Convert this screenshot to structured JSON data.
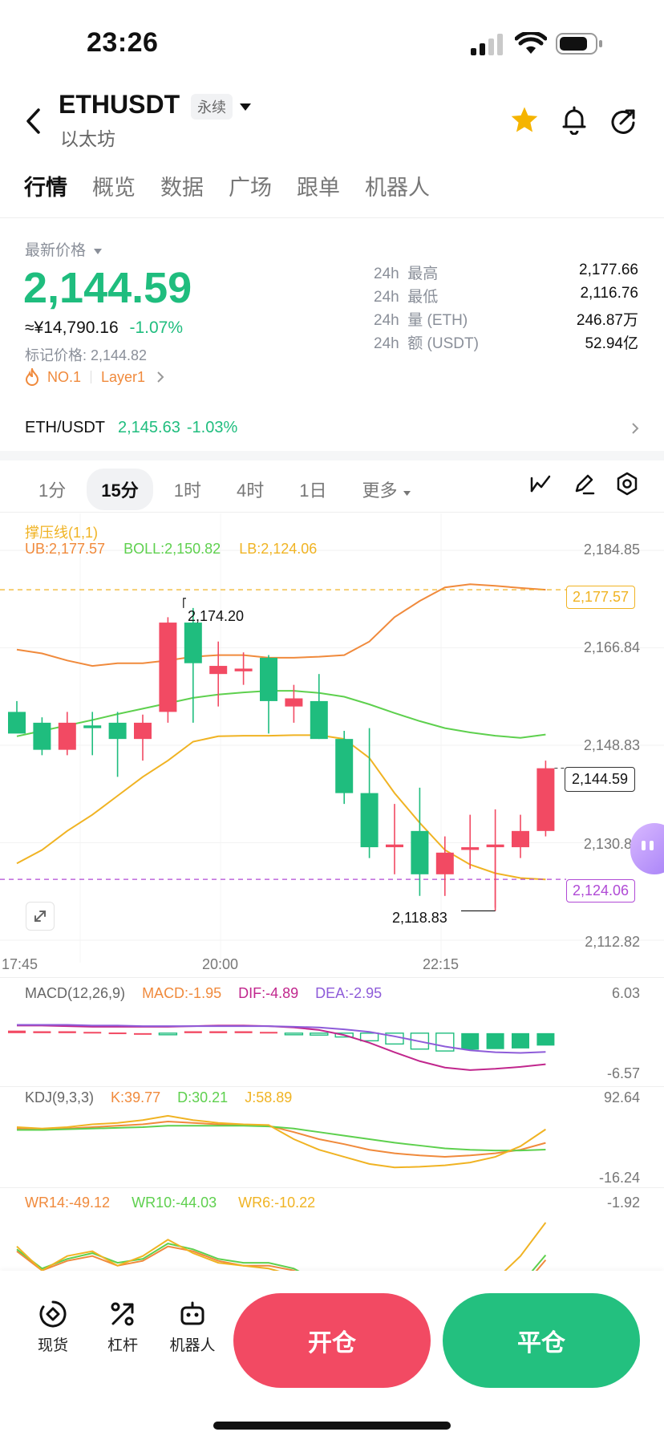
{
  "status_bar": {
    "time": "23:26"
  },
  "header": {
    "symbol": "ETHUSDT",
    "badge": "永续",
    "subtitle": "以太坊"
  },
  "tabs": [
    "行情",
    "概览",
    "数据",
    "广场",
    "跟单",
    "机器人"
  ],
  "ticker": {
    "latest_label": "最新价格",
    "price": "2,144.59",
    "cny": "≈¥14,790.16",
    "change": "-1.07%",
    "mark_price": "标记价格: 2,144.82",
    "rank": "NO.1",
    "category": "Layer1"
  },
  "stats": [
    {
      "period": "24h",
      "label": "最高",
      "value": "2,177.66"
    },
    {
      "period": "24h",
      "label": "最低",
      "value": "2,116.76"
    },
    {
      "period": "24h",
      "label": "量 (ETH)",
      "value": "246.87万"
    },
    {
      "period": "24h",
      "label": "额 (USDT)",
      "value": "52.94亿"
    }
  ],
  "pair": {
    "name": "ETH/USDT",
    "price": "2,145.63",
    "change": "-1.03%"
  },
  "intervals": [
    "1分",
    "15分",
    "1时",
    "4时",
    "1日",
    "更多"
  ],
  "chart_data": {
    "type": "candlestick",
    "indicator_title": "撑压线(1,1)",
    "boll": {
      "ub": "UB:2,177.57",
      "boll": "BOLL:2,150.82",
      "lb": "LB:2,124.06"
    },
    "y_ticks": [
      "2,184.85",
      "2,166.84",
      "2,148.83",
      "2,130.83",
      "2,112.82"
    ],
    "x_ticks": [
      "17:45",
      "20:00",
      "22:15"
    ],
    "ylim": [
      2112.82,
      2184.85
    ],
    "price_tags": {
      "ub": "2,177.57",
      "last": "2,144.59",
      "lb": "2,124.06"
    },
    "high_label": "2,174.20",
    "low_label": "2,118.83",
    "candles": [
      {
        "o": 2155.0,
        "h": 2157.0,
        "l": 2151.5,
        "c": 2151.0
      },
      {
        "o": 2153.0,
        "h": 2154.0,
        "l": 2147.0,
        "c": 2148.0
      },
      {
        "o": 2148.0,
        "h": 2155.0,
        "l": 2147.0,
        "c": 2153.0
      },
      {
        "o": 2152.5,
        "h": 2155.0,
        "l": 2147.0,
        "c": 2152.0
      },
      {
        "o": 2153.0,
        "h": 2155.0,
        "l": 2143.0,
        "c": 2150.0
      },
      {
        "o": 2150.0,
        "h": 2154.5,
        "l": 2146.0,
        "c": 2153.0
      },
      {
        "o": 2155.0,
        "h": 2172.5,
        "l": 2153.0,
        "c": 2171.5
      },
      {
        "o": 2171.5,
        "h": 2174.2,
        "l": 2153.0,
        "c": 2164.0
      },
      {
        "o": 2162.0,
        "h": 2168.0,
        "l": 2156.0,
        "c": 2163.5
      },
      {
        "o": 2162.5,
        "h": 2166.0,
        "l": 2160.0,
        "c": 2163.0
      },
      {
        "o": 2165.0,
        "h": 2165.5,
        "l": 2151.0,
        "c": 2157.0
      },
      {
        "o": 2156.0,
        "h": 2160.0,
        "l": 2153.0,
        "c": 2157.5
      },
      {
        "o": 2157.0,
        "h": 2162.0,
        "l": 2150.0,
        "c": 2150.0
      },
      {
        "o": 2150.0,
        "h": 2151.5,
        "l": 2138.0,
        "c": 2140.0
      },
      {
        "o": 2140.0,
        "h": 2152.0,
        "l": 2128.0,
        "c": 2130.0
      },
      {
        "o": 2130.0,
        "h": 2138.0,
        "l": 2125.0,
        "c": 2130.5
      },
      {
        "o": 2133.0,
        "h": 2141.0,
        "l": 2121.0,
        "c": 2125.0
      },
      {
        "o": 2125.0,
        "h": 2132.0,
        "l": 2121.0,
        "c": 2129.0
      },
      {
        "o": 2129.5,
        "h": 2136.0,
        "l": 2126.0,
        "c": 2130.0
      },
      {
        "o": 2130.0,
        "h": 2137.0,
        "l": 2118.83,
        "c": 2130.5
      },
      {
        "o": 2130.0,
        "h": 2136.0,
        "l": 2128.0,
        "c": 2133.0
      },
      {
        "o": 2133.0,
        "h": 2146.0,
        "l": 2132.0,
        "c": 2144.59
      }
    ],
    "macd": {
      "title": "MACD(12,26,9)",
      "macd": "MACD:-1.95",
      "dif": "DIF:-4.89",
      "dea": "DEA:-2.95",
      "top": "6.03",
      "bottom": "-6.57"
    },
    "kdj": {
      "title": "KDJ(9,3,3)",
      "k": "K:39.77",
      "d": "D:30.21",
      "j": "J:58.89",
      "top": "92.64",
      "bottom": "-16.24"
    },
    "wr": {
      "wr14": "WR14:-49.12",
      "wr10": "WR10:-44.03",
      "wr6": "WR6:-10.22",
      "top": "-1.92"
    }
  },
  "bottom_nav": {
    "items": [
      "现货",
      "杠杆",
      "机器人"
    ],
    "open_label": "开仓",
    "close_label": "平仓"
  },
  "colors": {
    "up": "#1fbd7e",
    "down": "#f24a63",
    "ub": "#f08a3c",
    "mid": "#5ed04e",
    "lb": "#f0b323",
    "macd_dif": "#c1278d",
    "macd_dea": "#8e5cd9"
  }
}
